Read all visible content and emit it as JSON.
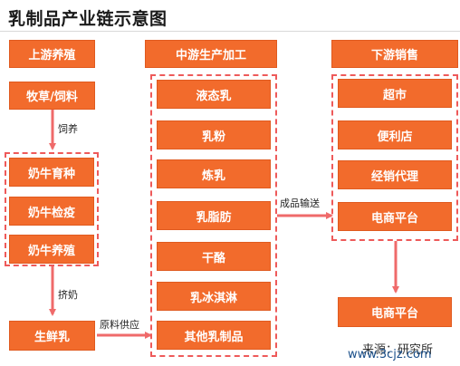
{
  "title": "乳制品产业链示意图",
  "colors": {
    "box": "#f26b2c",
    "dash": "#ee5a5a",
    "arrow": "#ef6a6a"
  },
  "columns": {
    "upstream": {
      "header": "上游养殖",
      "feed": "牧草/饲料",
      "feed_label": "饲养",
      "cattle": [
        "奶牛育种",
        "奶牛检疫",
        "奶牛养殖"
      ],
      "milk_label": "挤奶",
      "fresh_milk": "生鲜乳",
      "supply_label": "原料供应"
    },
    "midstream": {
      "header": "中游生产加工",
      "products": [
        "液态乳",
        "乳粉",
        "炼乳",
        "乳脂肪",
        "干酪",
        "乳冰淇淋",
        "其他乳制品"
      ],
      "output_label": "成品输送"
    },
    "downstream": {
      "header": "下游销售",
      "channels": [
        "超市",
        "便利店",
        "经销代理",
        "电商平台"
      ],
      "final": "电商平台"
    }
  },
  "watermark": {
    "source": "来源：研究所",
    "site": "www.3cjz.com"
  }
}
